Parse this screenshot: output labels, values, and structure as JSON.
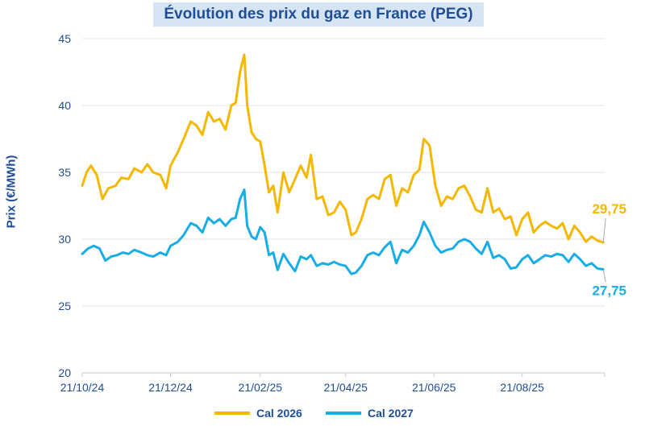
{
  "chart_data": {
    "type": "line",
    "title": "Évolution des prix du gaz en France (PEG)",
    "ylabel": "Prix (€/MWh)",
    "xlabel": "",
    "ylim": [
      20,
      45
    ],
    "yticks": [
      "20",
      "25",
      "30",
      "35",
      "40",
      "45"
    ],
    "xlim": [
      "2024-10-21",
      "2025-10-17"
    ],
    "xtick_dates": [
      "2024-10-21",
      "2024-12-21",
      "2025-02-21",
      "2025-04-21",
      "2025-06-21",
      "2025-08-21"
    ],
    "xtick_labels": [
      "21/10/24",
      "21/12/24",
      "21/02/25",
      "21/04/25",
      "21/06/25",
      "21/08/25"
    ],
    "grid": true,
    "legend_position": "bottom",
    "series": [
      {
        "name": "Cal 2026",
        "color": "#f5b800",
        "end_label": "29,75",
        "points": [
          [
            "2024-10-21",
            34.0
          ],
          [
            "2024-10-24",
            35.0
          ],
          [
            "2024-10-27",
            35.5
          ],
          [
            "2024-10-31",
            34.8
          ],
          [
            "2024-11-04",
            33.0
          ],
          [
            "2024-11-08",
            33.8
          ],
          [
            "2024-11-13",
            34.0
          ],
          [
            "2024-11-17",
            34.6
          ],
          [
            "2024-11-22",
            34.5
          ],
          [
            "2024-11-26",
            35.3
          ],
          [
            "2024-12-01",
            35.0
          ],
          [
            "2024-12-05",
            35.6
          ],
          [
            "2024-12-09",
            35.0
          ],
          [
            "2024-12-14",
            34.8
          ],
          [
            "2024-12-18",
            33.8
          ],
          [
            "2024-12-21",
            35.5
          ],
          [
            "2024-12-26",
            36.5
          ],
          [
            "2024-12-30",
            37.5
          ],
          [
            "2025-01-04",
            38.8
          ],
          [
            "2025-01-08",
            38.5
          ],
          [
            "2025-01-12",
            37.8
          ],
          [
            "2025-01-16",
            39.5
          ],
          [
            "2025-01-20",
            38.8
          ],
          [
            "2025-01-24",
            39.0
          ],
          [
            "2025-01-28",
            38.2
          ],
          [
            "2025-02-01",
            40.0
          ],
          [
            "2025-02-04",
            40.2
          ],
          [
            "2025-02-07",
            42.5
          ],
          [
            "2025-02-10",
            43.8
          ],
          [
            "2025-02-12",
            40.0
          ],
          [
            "2025-02-15",
            38.0
          ],
          [
            "2025-02-18",
            37.5
          ],
          [
            "2025-02-21",
            37.3
          ],
          [
            "2025-02-24",
            35.5
          ],
          [
            "2025-02-27",
            33.5
          ],
          [
            "2025-03-02",
            34.0
          ],
          [
            "2025-03-05",
            32.0
          ],
          [
            "2025-03-09",
            35.0
          ],
          [
            "2025-03-13",
            33.5
          ],
          [
            "2025-03-17",
            34.5
          ],
          [
            "2025-03-21",
            35.5
          ],
          [
            "2025-03-25",
            34.6
          ],
          [
            "2025-03-28",
            36.3
          ],
          [
            "2025-04-01",
            33.0
          ],
          [
            "2025-04-05",
            33.2
          ],
          [
            "2025-04-09",
            31.8
          ],
          [
            "2025-04-13",
            32.0
          ],
          [
            "2025-04-17",
            32.8
          ],
          [
            "2025-04-21",
            32.2
          ],
          [
            "2025-04-25",
            30.3
          ],
          [
            "2025-04-28",
            30.5
          ],
          [
            "2025-05-02",
            31.5
          ],
          [
            "2025-05-06",
            33.0
          ],
          [
            "2025-05-10",
            33.3
          ],
          [
            "2025-05-14",
            33.0
          ],
          [
            "2025-05-18",
            34.5
          ],
          [
            "2025-05-22",
            34.8
          ],
          [
            "2025-05-26",
            32.5
          ],
          [
            "2025-05-30",
            33.8
          ],
          [
            "2025-06-03",
            33.5
          ],
          [
            "2025-06-07",
            34.8
          ],
          [
            "2025-06-11",
            35.2
          ],
          [
            "2025-06-14",
            37.5
          ],
          [
            "2025-06-18",
            37.0
          ],
          [
            "2025-06-22",
            34.0
          ],
          [
            "2025-06-26",
            32.5
          ],
          [
            "2025-06-30",
            33.2
          ],
          [
            "2025-07-04",
            33.0
          ],
          [
            "2025-07-08",
            33.8
          ],
          [
            "2025-07-12",
            34.0
          ],
          [
            "2025-07-16",
            33.2
          ],
          [
            "2025-07-20",
            32.2
          ],
          [
            "2025-07-24",
            32.0
          ],
          [
            "2025-07-28",
            33.8
          ],
          [
            "2025-08-01",
            32.0
          ],
          [
            "2025-08-05",
            32.3
          ],
          [
            "2025-08-09",
            31.5
          ],
          [
            "2025-08-13",
            31.7
          ],
          [
            "2025-08-17",
            30.3
          ],
          [
            "2025-08-21",
            31.5
          ],
          [
            "2025-08-25",
            32.0
          ],
          [
            "2025-08-29",
            30.5
          ],
          [
            "2025-09-02",
            31.0
          ],
          [
            "2025-09-06",
            31.3
          ],
          [
            "2025-09-10",
            31.0
          ],
          [
            "2025-09-14",
            30.8
          ],
          [
            "2025-09-18",
            31.2
          ],
          [
            "2025-09-22",
            30.0
          ],
          [
            "2025-09-26",
            31.0
          ],
          [
            "2025-09-30",
            30.5
          ],
          [
            "2025-10-04",
            29.8
          ],
          [
            "2025-10-08",
            30.2
          ],
          [
            "2025-10-12",
            29.9
          ],
          [
            "2025-10-16",
            29.75
          ]
        ]
      },
      {
        "name": "Cal 2027",
        "color": "#19ade8",
        "end_label": "27,75",
        "points": [
          [
            "2024-10-21",
            28.9
          ],
          [
            "2024-10-25",
            29.3
          ],
          [
            "2024-10-29",
            29.5
          ],
          [
            "2024-11-02",
            29.3
          ],
          [
            "2024-11-06",
            28.4
          ],
          [
            "2024-11-10",
            28.7
          ],
          [
            "2024-11-14",
            28.8
          ],
          [
            "2024-11-18",
            29.0
          ],
          [
            "2024-11-22",
            28.9
          ],
          [
            "2024-11-26",
            29.2
          ],
          [
            "2024-12-01",
            29.0
          ],
          [
            "2024-12-05",
            28.8
          ],
          [
            "2024-12-09",
            28.7
          ],
          [
            "2024-12-14",
            29.0
          ],
          [
            "2024-12-18",
            28.8
          ],
          [
            "2024-12-21",
            29.5
          ],
          [
            "2024-12-26",
            29.8
          ],
          [
            "2024-12-30",
            30.3
          ],
          [
            "2025-01-04",
            31.2
          ],
          [
            "2025-01-08",
            31.0
          ],
          [
            "2025-01-12",
            30.5
          ],
          [
            "2025-01-16",
            31.6
          ],
          [
            "2025-01-20",
            31.2
          ],
          [
            "2025-01-24",
            31.5
          ],
          [
            "2025-01-28",
            31.0
          ],
          [
            "2025-02-01",
            31.5
          ],
          [
            "2025-02-04",
            31.6
          ],
          [
            "2025-02-07",
            33.0
          ],
          [
            "2025-02-10",
            33.7
          ],
          [
            "2025-02-12",
            31.0
          ],
          [
            "2025-02-15",
            30.2
          ],
          [
            "2025-02-18",
            30.0
          ],
          [
            "2025-02-21",
            30.9
          ],
          [
            "2025-02-24",
            30.5
          ],
          [
            "2025-02-27",
            28.8
          ],
          [
            "2025-03-02",
            29.0
          ],
          [
            "2025-03-05",
            27.7
          ],
          [
            "2025-03-09",
            28.9
          ],
          [
            "2025-03-13",
            28.2
          ],
          [
            "2025-03-17",
            27.6
          ],
          [
            "2025-03-21",
            28.7
          ],
          [
            "2025-03-25",
            28.5
          ],
          [
            "2025-03-28",
            28.8
          ],
          [
            "2025-04-01",
            28.0
          ],
          [
            "2025-04-05",
            28.2
          ],
          [
            "2025-04-09",
            28.1
          ],
          [
            "2025-04-13",
            28.3
          ],
          [
            "2025-04-17",
            28.1
          ],
          [
            "2025-04-21",
            28.0
          ],
          [
            "2025-04-25",
            27.4
          ],
          [
            "2025-04-28",
            27.5
          ],
          [
            "2025-05-02",
            28.0
          ],
          [
            "2025-05-06",
            28.8
          ],
          [
            "2025-05-10",
            29.0
          ],
          [
            "2025-05-14",
            28.8
          ],
          [
            "2025-05-18",
            29.4
          ],
          [
            "2025-05-22",
            29.8
          ],
          [
            "2025-05-26",
            28.2
          ],
          [
            "2025-05-30",
            29.2
          ],
          [
            "2025-06-03",
            29.0
          ],
          [
            "2025-06-07",
            29.5
          ],
          [
            "2025-06-11",
            30.3
          ],
          [
            "2025-06-14",
            31.3
          ],
          [
            "2025-06-18",
            30.5
          ],
          [
            "2025-06-22",
            29.5
          ],
          [
            "2025-06-26",
            29.0
          ],
          [
            "2025-06-30",
            29.2
          ],
          [
            "2025-07-04",
            29.3
          ],
          [
            "2025-07-08",
            29.8
          ],
          [
            "2025-07-12",
            30.0
          ],
          [
            "2025-07-16",
            29.8
          ],
          [
            "2025-07-20",
            29.3
          ],
          [
            "2025-07-24",
            28.9
          ],
          [
            "2025-07-28",
            29.8
          ],
          [
            "2025-08-01",
            28.6
          ],
          [
            "2025-08-05",
            28.8
          ],
          [
            "2025-08-09",
            28.5
          ],
          [
            "2025-08-13",
            27.8
          ],
          [
            "2025-08-17",
            27.9
          ],
          [
            "2025-08-21",
            28.5
          ],
          [
            "2025-08-25",
            28.8
          ],
          [
            "2025-08-29",
            28.2
          ],
          [
            "2025-09-02",
            28.5
          ],
          [
            "2025-09-06",
            28.8
          ],
          [
            "2025-09-10",
            28.7
          ],
          [
            "2025-09-14",
            28.9
          ],
          [
            "2025-09-18",
            28.8
          ],
          [
            "2025-09-22",
            28.3
          ],
          [
            "2025-09-26",
            28.9
          ],
          [
            "2025-09-30",
            28.5
          ],
          [
            "2025-10-04",
            28.0
          ],
          [
            "2025-10-08",
            28.2
          ],
          [
            "2025-10-12",
            27.8
          ],
          [
            "2025-10-16",
            27.75
          ]
        ]
      }
    ]
  }
}
